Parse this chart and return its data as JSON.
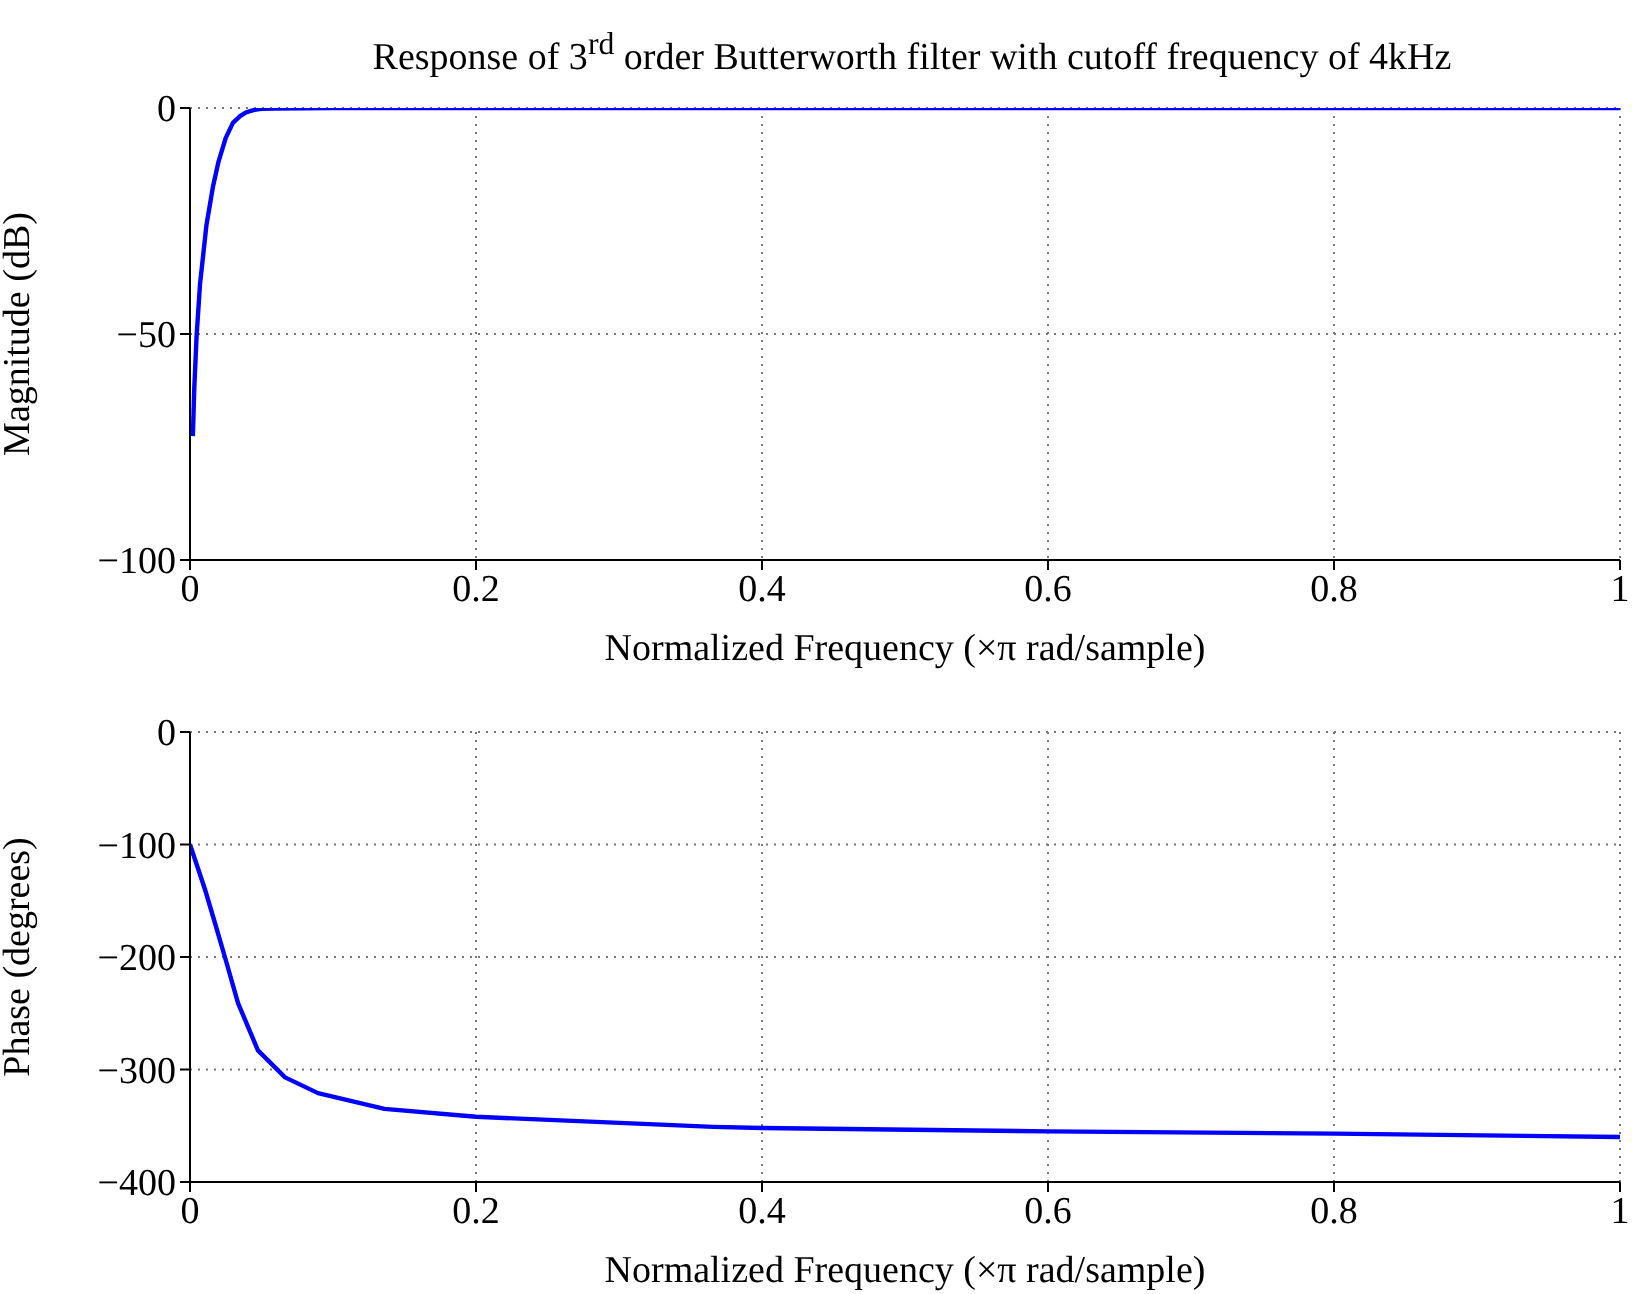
{
  "chart_data": [
    {
      "type": "line",
      "title": "Response of 3$^{rd}$ order Butterworth filter with cutoff frequency of 4kHz",
      "xlabel": "Normalized Frequency  (×π rad/sample)",
      "ylabel": "Magnitude (dB)",
      "x": [
        0.002,
        0.003,
        0.0046,
        0.007,
        0.0115,
        0.016,
        0.02,
        0.025,
        0.03,
        0.035,
        0.039,
        0.045,
        0.05,
        0.06,
        0.1,
        0.3,
        0.6,
        1
      ],
      "series": [
        {
          "color": "#0000ff",
          "values": [
            -72.6,
            -62,
            -50.5,
            -39,
            -25.9,
            -17.5,
            -11.8,
            -6.6,
            -3.3,
            -1.8,
            -1,
            -0.4,
            -0.2,
            -0.1,
            0,
            0,
            0,
            0
          ]
        }
      ],
      "xlim": [
        0,
        1
      ],
      "xticks": [
        0,
        0.2,
        0.4,
        0.6,
        0.8,
        1
      ],
      "ylim": [
        -100,
        0
      ],
      "yticks": [
        -100,
        -50,
        0
      ],
      "grid": true,
      "legend": false,
      "marker": "none",
      "line_style": "solid"
    },
    {
      "type": "line",
      "xlabel": "Normalized Frequency  (×π rad/sample)",
      "ylabel": "Phase (degrees)",
      "x": [
        0,
        0.0105,
        0.0175,
        0.0244,
        0.0336,
        0.0475,
        0.0665,
        0.0895,
        0.136,
        0.2,
        0.366,
        0.4,
        0.6,
        0.8,
        1
      ],
      "series": [
        {
          "color": "#0000ff",
          "values": [
            -100,
            -140,
            -170,
            -200,
            -241,
            -283,
            -307,
            -321,
            -335,
            -342,
            -351,
            -352,
            -355,
            -357,
            -360
          ]
        }
      ],
      "xlim": [
        0,
        1
      ],
      "xticks": [
        0,
        0.2,
        0.4,
        0.6,
        0.8,
        1
      ],
      "ylim": [
        -400,
        0
      ],
      "yticks": [
        -400,
        -300,
        -200,
        -100,
        0
      ],
      "grid": true,
      "legend": false,
      "marker": "none",
      "line_style": "solid"
    }
  ]
}
